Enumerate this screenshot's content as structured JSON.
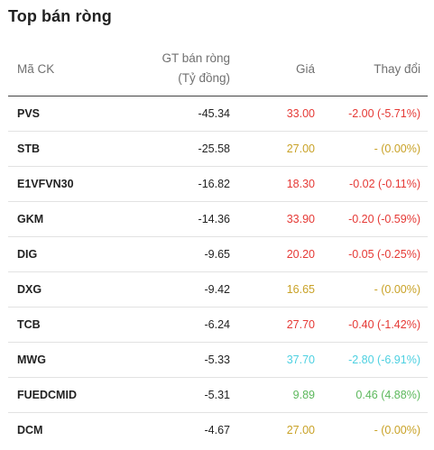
{
  "title": "Top bán ròng",
  "headers": {
    "code": "Mã CK",
    "gt_line1": "GT bán ròng",
    "gt_line2": "(Tỷ đồng)",
    "price": "Giá",
    "change": "Thay đổi"
  },
  "colors": {
    "down": "#e53935",
    "ref": "#c9a227",
    "up": "#5cb85c",
    "floor": "#4dd0e1"
  },
  "rows": [
    {
      "code": "PVS",
      "net": "-45.34",
      "price": "33.00",
      "change": "-2.00 (-5.71%)",
      "status": "down"
    },
    {
      "code": "STB",
      "net": "-25.58",
      "price": "27.00",
      "change": "- (0.00%)",
      "status": "ref"
    },
    {
      "code": "E1VFVN30",
      "net": "-16.82",
      "price": "18.30",
      "change": "-0.02 (-0.11%)",
      "status": "down"
    },
    {
      "code": "GKM",
      "net": "-14.36",
      "price": "33.90",
      "change": "-0.20 (-0.59%)",
      "status": "down"
    },
    {
      "code": "DIG",
      "net": "-9.65",
      "price": "20.20",
      "change": "-0.05 (-0.25%)",
      "status": "down"
    },
    {
      "code": "DXG",
      "net": "-9.42",
      "price": "16.65",
      "change": "- (0.00%)",
      "status": "ref"
    },
    {
      "code": "TCB",
      "net": "-6.24",
      "price": "27.70",
      "change": "-0.40 (-1.42%)",
      "status": "down"
    },
    {
      "code": "MWG",
      "net": "-5.33",
      "price": "37.70",
      "change": "-2.80 (-6.91%)",
      "status": "floor"
    },
    {
      "code": "FUEDCMID",
      "net": "-5.31",
      "price": "9.89",
      "change": "0.46 (4.88%)",
      "status": "up"
    },
    {
      "code": "DCM",
      "net": "-4.67",
      "price": "27.00",
      "change": "- (0.00%)",
      "status": "ref"
    }
  ]
}
